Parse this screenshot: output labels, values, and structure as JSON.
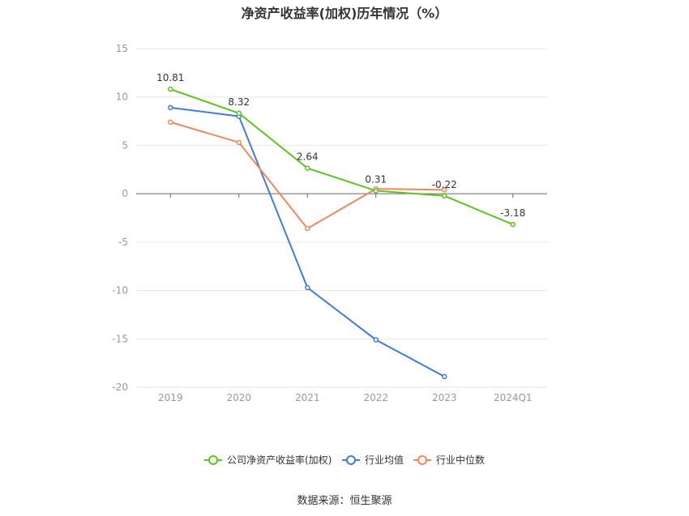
{
  "chart_data": {
    "type": "line",
    "title": "净资产收益率(加权)历年情况（%）",
    "categories": [
      "2019",
      "2020",
      "2021",
      "2022",
      "2023",
      "2024Q1"
    ],
    "ylim": [
      -20,
      15
    ],
    "yticks": [
      15,
      10,
      5,
      0,
      -5,
      -10,
      -15,
      -20
    ],
    "grid": true,
    "legend_position": "bottom",
    "series": [
      {
        "name": "公司净资产收益率(加权)",
        "color": "#5cc31e",
        "values": [
          10.81,
          8.32,
          2.64,
          0.31,
          -0.22,
          -3.18
        ],
        "labels": [
          "10.81",
          "8.32",
          "2.64",
          "0.31",
          "-0.22",
          "-3.18"
        ]
      },
      {
        "name": "行业均值",
        "color": "#3f7be0",
        "values": [
          8.9,
          8.0,
          -9.7,
          -15.1,
          -18.9,
          null
        ]
      },
      {
        "name": "行业中位数",
        "color": "#f0875c",
        "values": [
          7.4,
          5.3,
          -3.6,
          0.5,
          0.4,
          null
        ]
      }
    ]
  },
  "source": "数据来源：恒生聚源"
}
